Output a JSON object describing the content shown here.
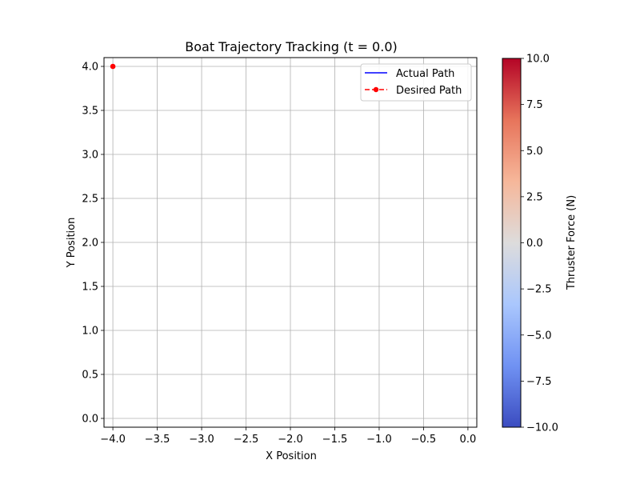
{
  "chart_data": {
    "type": "line",
    "title": "Boat Trajectory Tracking (t = 0.0)",
    "xlabel": "X Position",
    "ylabel": "Y Position",
    "xlim": [
      -4.1,
      0.1
    ],
    "ylim": [
      -0.1,
      4.1
    ],
    "x_ticks": [
      -4.0,
      -3.5,
      -3.0,
      -2.5,
      -2.0,
      -1.5,
      -1.0,
      -0.5,
      0.0
    ],
    "y_ticks": [
      0.0,
      0.5,
      1.0,
      1.5,
      2.0,
      2.5,
      3.0,
      3.5,
      4.0
    ],
    "x_tick_labels": [
      "−4.0",
      "−3.5",
      "−3.0",
      "−2.5",
      "−2.0",
      "−1.5",
      "−1.0",
      "−0.5",
      "0.0"
    ],
    "y_tick_labels": [
      "0.0",
      "0.5",
      "1.0",
      "1.5",
      "2.0",
      "2.5",
      "3.0",
      "3.5",
      "4.0"
    ],
    "grid": true,
    "legend": "top-right",
    "series": [
      {
        "name": "Actual Path",
        "style": "solid",
        "color": "#0000ff",
        "x": [],
        "y": []
      },
      {
        "name": "Desired Path",
        "style": "dashed-dot-marker",
        "color": "#ff0000",
        "x": [
          -4.0
        ],
        "y": [
          4.0
        ]
      }
    ],
    "colorbar": {
      "label": "Thruster Force (N)",
      "colormap": "coolwarm",
      "range": [
        -10,
        10
      ],
      "ticks": [
        -10.0,
        -7.5,
        -5.0,
        -2.5,
        0.0,
        2.5,
        5.0,
        7.5,
        10.0
      ],
      "tick_labels": [
        "−10.0",
        "−7.5",
        "−5.0",
        "−2.5",
        "0.0",
        "2.5",
        "5.0",
        "7.5",
        "10.0"
      ],
      "colors": [
        "#3b4cc0",
        "#7092f3",
        "#aac7fd",
        "#dddcdc",
        "#f6b79a",
        "#e7745b",
        "#b40426"
      ]
    }
  }
}
